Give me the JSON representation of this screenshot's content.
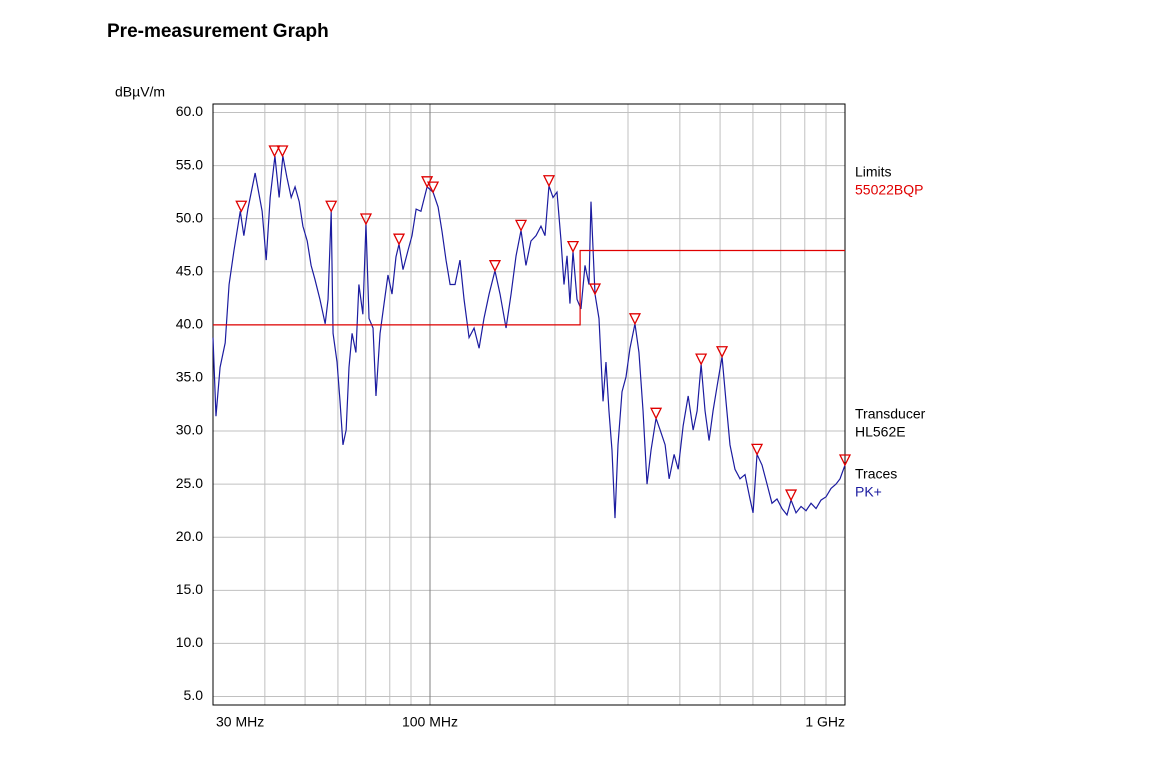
{
  "chart_data": {
    "type": "line",
    "title": "Pre-measurement  Graph",
    "y_label": "dBµV/m",
    "xscale": "log",
    "xlim": [
      30,
      1000
    ],
    "xticks": [
      {
        "value": 30,
        "label": "30 MHz"
      },
      {
        "value": 100,
        "label": "100 MHz"
      },
      {
        "value": 1000,
        "label": "1 GHz"
      }
    ],
    "xgrid": [
      40,
      50,
      60,
      70,
      80,
      90,
      200,
      300,
      400,
      500,
      600,
      700,
      800,
      900
    ],
    "ylim": [
      4.2,
      60.8
    ],
    "yticks": [
      {
        "value": 60,
        "label": "60.0"
      },
      {
        "value": 55,
        "label": "55.0"
      },
      {
        "value": 50,
        "label": "50.0"
      },
      {
        "value": 45,
        "label": "45.0"
      },
      {
        "value": 40,
        "label": "40.0"
      },
      {
        "value": 35,
        "label": "35.0"
      },
      {
        "value": 30,
        "label": "30.0"
      },
      {
        "value": 25,
        "label": "25.0"
      },
      {
        "value": 20,
        "label": "20.0"
      },
      {
        "value": 15,
        "label": "15.0"
      },
      {
        "value": 10,
        "label": "10.0"
      },
      {
        "value": 5,
        "label": "5.0"
      }
    ],
    "grid": true,
    "legend": {
      "limits_heading": "Limits",
      "transducer_heading": "Transducer",
      "transducer": "HL562E",
      "traces_heading": "Traces"
    },
    "series": [
      {
        "name": "PK+",
        "color": "#1c1ca0",
        "x": [
          30,
          30.5,
          31.2,
          32.1,
          32.8,
          33.7,
          34.9,
          35.6,
          36.4,
          37.9,
          39.4,
          40.3,
          41.2,
          42.3,
          43.3,
          44.2,
          45.2,
          46.3,
          47.3,
          48.4,
          49.4,
          50.6,
          51.7,
          52.8,
          54.3,
          55.9,
          56.8,
          57.8,
          58.4,
          59.7,
          60.7,
          61.7,
          62.8,
          63.8,
          64.9,
          66.3,
          67.4,
          68.9,
          70.1,
          71.3,
          72.9,
          74.1,
          75.8,
          77.5,
          79.2,
          81.0,
          82.8,
          84.2,
          86.1,
          88.5,
          90.5,
          92.6,
          95.1,
          98.4,
          101.7,
          104.6,
          106.9,
          109.3,
          111.8,
          114.9,
          118.1,
          120.8,
          124.2,
          127.7,
          131.3,
          134.9,
          138.8,
          143.4,
          147.5,
          152.5,
          156.8,
          161.2,
          165.7,
          170.3,
          175.1,
          180.1,
          185.1,
          189.3,
          193.5,
          197.9,
          202.3,
          206.9,
          210.3,
          213.9,
          217.4,
          221.1,
          226.1,
          231.1,
          236.3,
          241.6,
          244.3,
          249.8,
          255.4,
          261.2,
          265.5,
          269.9,
          274.5,
          279.1,
          283.8,
          290.2,
          296.7,
          303.3,
          311.8,
          318.8,
          326.1,
          333.4,
          340.9,
          350.5,
          358.5,
          368.6,
          376.9,
          387.5,
          396.3,
          407.4,
          418.9,
          430.6,
          440.2,
          450.1,
          460.0,
          470.4,
          480.9,
          491.7,
          505.5,
          516.7,
          528.3,
          543.1,
          558.5,
          574.2,
          590.4,
          600.4,
          613.8,
          631.0,
          648.8,
          666.9,
          685.7,
          705.0,
          724.8,
          741.3,
          762.1,
          783.6,
          805.6,
          828.3,
          851.5,
          875.4,
          900.0,
          925.4,
          951.4,
          972.7,
          1000
        ],
        "values": [
          38.8,
          31.4,
          36.0,
          38.3,
          43.8,
          47.0,
          50.7,
          48.4,
          50.9,
          54.3,
          50.7,
          46.1,
          52.0,
          55.9,
          52.0,
          55.9,
          53.9,
          52.0,
          53.0,
          51.6,
          49.3,
          47.9,
          45.6,
          44.3,
          42.4,
          40.1,
          42.4,
          50.7,
          39.2,
          36.5,
          32.8,
          28.7,
          30.1,
          36.0,
          39.2,
          37.4,
          43.8,
          41.0,
          49.5,
          40.6,
          39.7,
          33.3,
          39.2,
          42.0,
          44.7,
          42.9,
          46.4,
          47.6,
          45.2,
          47.0,
          48.4,
          50.9,
          50.7,
          53.0,
          52.5,
          51.1,
          48.8,
          46.1,
          43.8,
          43.8,
          46.1,
          42.4,
          38.8,
          39.7,
          37.8,
          40.6,
          42.9,
          45.1,
          42.9,
          39.7,
          42.9,
          46.5,
          48.9,
          45.6,
          47.9,
          48.4,
          49.3,
          48.4,
          53.1,
          52.0,
          52.5,
          47.9,
          43.8,
          46.5,
          42.0,
          46.9,
          42.4,
          41.5,
          45.6,
          43.8,
          51.6,
          42.9,
          40.6,
          32.8,
          36.5,
          31.9,
          28.2,
          21.8,
          28.7,
          33.7,
          35.1,
          37.8,
          40.1,
          37.4,
          31.9,
          25.0,
          28.2,
          31.2,
          30.1,
          28.7,
          25.5,
          27.8,
          26.4,
          30.5,
          33.3,
          30.1,
          31.9,
          36.3,
          31.9,
          29.1,
          31.9,
          34.2,
          37.0,
          32.8,
          28.7,
          26.4,
          25.5,
          25.9,
          23.6,
          22.3,
          27.8,
          26.8,
          25.0,
          23.2,
          23.6,
          22.7,
          22.1,
          23.5,
          22.3,
          22.9,
          22.5,
          23.2,
          22.7,
          23.5,
          23.8,
          24.6,
          25.0,
          25.5,
          26.8
        ]
      },
      {
        "name": "55022BQP",
        "color": "#e00000",
        "x": [
          30,
          230,
          230,
          1000
        ],
        "values": [
          40,
          40,
          47,
          47
        ]
      }
    ],
    "markers": {
      "color": "#e00000",
      "x": [
        35.1,
        42.2,
        44.1,
        57.8,
        70.1,
        84.2,
        98.4,
        101.7,
        143.4,
        165.7,
        193.5,
        221.1,
        249.8,
        311.8,
        350.5,
        450.1,
        505.5,
        613.8,
        741.3,
        1000
      ],
      "values": [
        50.7,
        55.9,
        55.9,
        50.7,
        49.5,
        47.6,
        53.0,
        52.5,
        45.1,
        48.9,
        53.1,
        46.9,
        42.9,
        40.1,
        31.2,
        36.3,
        37.0,
        27.8,
        23.5,
        26.8
      ]
    }
  }
}
